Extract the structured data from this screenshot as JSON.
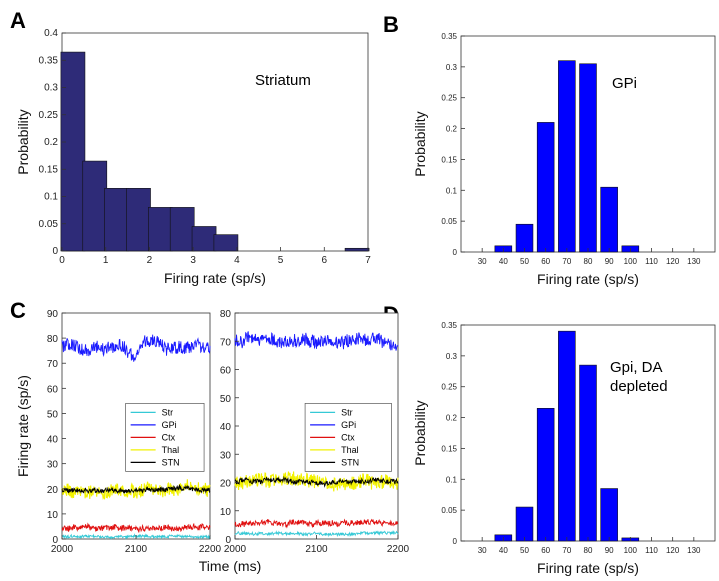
{
  "chart_data": [
    {
      "panel": "A",
      "type": "bar",
      "annotation": "Striatum",
      "xlabel": "Firing rate (sp/s)",
      "ylabel": "Probability",
      "xlim": [
        0,
        7
      ],
      "ylim": [
        0,
        0.4
      ],
      "xticks": [
        "0",
        "1",
        "2",
        "3",
        "4",
        "5",
        "6",
        "7"
      ],
      "yticks": [
        "0",
        "0.05",
        "0.1",
        "0.15",
        "0.2",
        "0.25",
        "0.3",
        "0.35",
        "0.4"
      ],
      "bin_width": 0.55,
      "x": [
        0.25,
        0.75,
        1.25,
        1.75,
        2.25,
        2.75,
        3.25,
        3.75,
        4.25,
        4.75,
        5.25,
        5.75,
        6.25,
        6.75
      ],
      "values": [
        0.365,
        0.165,
        0.115,
        0.115,
        0.08,
        0.08,
        0.045,
        0.03,
        0,
        0,
        0,
        0,
        0,
        0.005
      ],
      "color": "#2e2b78"
    },
    {
      "panel": "B",
      "type": "bar",
      "annotation": "GPi",
      "xlabel": "Firing rate (sp/s)",
      "ylabel": "Probability",
      "xlim": [
        20,
        140
      ],
      "ylim": [
        0,
        0.35
      ],
      "xticks": [
        "30",
        "40",
        "50",
        "60",
        "70",
        "80",
        "90",
        "100",
        "110",
        "120",
        "130"
      ],
      "yticks": [
        "0",
        "0.05",
        "0.1",
        "0.15",
        "0.2",
        "0.25",
        "0.3",
        "0.35"
      ],
      "bin_width": 8,
      "x": [
        40,
        50,
        60,
        70,
        80,
        90,
        100
      ],
      "values": [
        0.01,
        0.045,
        0.21,
        0.31,
        0.305,
        0.105,
        0.01
      ],
      "color": "#0000ff"
    },
    {
      "panel": "C",
      "type": "line",
      "xlabel": "Time (ms)",
      "ylabel": "Firing rate (sp/s)",
      "subplots": [
        {
          "xlim": [
            2000,
            2200
          ],
          "ylim": [
            0,
            90
          ],
          "xticks": [
            "2000",
            "2100",
            "2200"
          ],
          "yticks": [
            "0",
            "10",
            "20",
            "30",
            "40",
            "50",
            "60",
            "70",
            "80",
            "90"
          ],
          "legend": [
            "Str",
            "GPi",
            "Ctx",
            "Thal",
            "STN"
          ],
          "series": [
            {
              "name": "Str",
              "color": "#35c9d6",
              "mean": 1,
              "noise": 0.5
            },
            {
              "name": "GPi",
              "color": "#1a1aff",
              "mean": 77,
              "noise": 2.5
            },
            {
              "name": "Ctx",
              "color": "#e01010",
              "mean": 4.5,
              "noise": 1.1
            },
            {
              "name": "Thal",
              "color": "#f2f200",
              "mean": 19,
              "noise": 2.6
            },
            {
              "name": "STN",
              "color": "#000000",
              "mean": 19.5,
              "noise": 0.9
            }
          ]
        },
        {
          "xlim": [
            2000,
            2200
          ],
          "ylim": [
            0,
            80
          ],
          "xticks": [
            "2000",
            "2100",
            "2200"
          ],
          "yticks": [
            "0",
            "10",
            "20",
            "30",
            "40",
            "50",
            "60",
            "70",
            "80"
          ],
          "legend": [
            "Str",
            "GPi",
            "Ctx",
            "Thal",
            "STN"
          ],
          "series": [
            {
              "name": "Str",
              "color": "#35c9d6",
              "mean": 2,
              "noise": 0.5
            },
            {
              "name": "GPi",
              "color": "#1a1aff",
              "mean": 70,
              "noise": 2.3
            },
            {
              "name": "Ctx",
              "color": "#e01010",
              "mean": 5.5,
              "noise": 1.0
            },
            {
              "name": "Thal",
              "color": "#f2f200",
              "mean": 20,
              "noise": 2.5
            },
            {
              "name": "STN",
              "color": "#000000",
              "mean": 20.5,
              "noise": 0.9
            }
          ]
        }
      ]
    },
    {
      "panel": "D",
      "type": "bar",
      "annotation_lines": [
        "Gpi, DA",
        "depleted"
      ],
      "xlabel": "Firing rate (sp/s)",
      "ylabel": "Probability",
      "xlim": [
        20,
        140
      ],
      "ylim": [
        0,
        0.35
      ],
      "xticks": [
        "30",
        "40",
        "50",
        "60",
        "70",
        "80",
        "90",
        "100",
        "110",
        "120",
        "130"
      ],
      "yticks": [
        "0",
        "0.05",
        "0.1",
        "0.15",
        "0.2",
        "0.25",
        "0.3",
        "0.35"
      ],
      "bin_width": 8,
      "x": [
        40,
        50,
        60,
        70,
        80,
        90,
        100
      ],
      "values": [
        0.01,
        0.055,
        0.215,
        0.34,
        0.285,
        0.085,
        0.005
      ],
      "color": "#0000ff"
    }
  ]
}
